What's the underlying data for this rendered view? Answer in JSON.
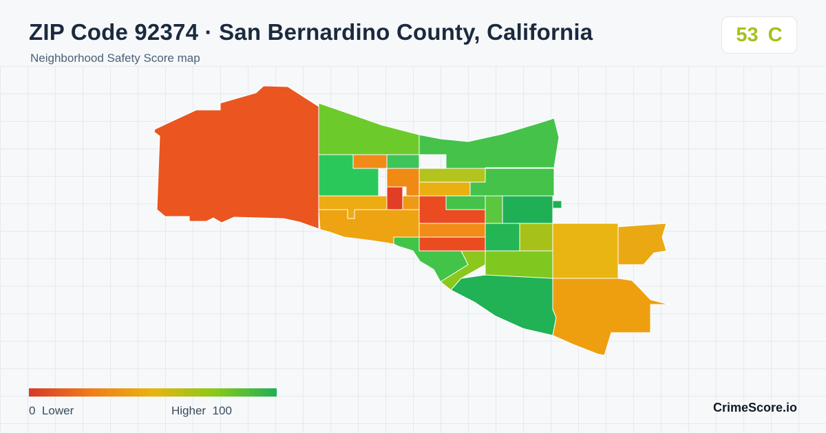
{
  "header": {
    "title": "ZIP Code 92374 · San Bernardino County, California",
    "subtitle": "Neighborhood Safety Score map"
  },
  "score_badge": {
    "score": "53",
    "grade": "C",
    "color": "#a4c21a"
  },
  "legend": {
    "min_label": "0",
    "low_label": "Lower",
    "high_label": "Higher",
    "max_label": "100",
    "colors": [
      "#d7392a",
      "#f07d1a",
      "#e8b40f",
      "#8ac919",
      "#1fb055"
    ]
  },
  "brand": {
    "name": "CrimeScore.io"
  },
  "map": {
    "type": "choropleth",
    "regions": [
      {
        "id": "west-large",
        "color": "#ea5520"
      },
      {
        "id": "north-green",
        "color": "#6dca2b"
      },
      {
        "id": "northeast-large",
        "color": "#44c24a"
      },
      {
        "id": "green-block-west",
        "color": "#2ac85a"
      },
      {
        "id": "orange-upper",
        "color": "#f28a18"
      },
      {
        "id": "green-strip",
        "color": "#3fc45a"
      },
      {
        "id": "orange-mid",
        "color": "#f08a15"
      },
      {
        "id": "olive-strip",
        "color": "#b2c41d"
      },
      {
        "id": "yellow-orange-strip",
        "color": "#eab012"
      },
      {
        "id": "red-small",
        "color": "#e23d25"
      },
      {
        "id": "orange-small",
        "color": "#ee9a16"
      },
      {
        "id": "amber-west",
        "color": "#ecac12"
      },
      {
        "id": "amber-west-lower",
        "color": "#eda312"
      },
      {
        "id": "red-center",
        "color": "#ea4b20"
      },
      {
        "id": "orange-center",
        "color": "#f18c18"
      },
      {
        "id": "green-center",
        "color": "#44c24a"
      },
      {
        "id": "green-east-small",
        "color": "#5ac73f"
      },
      {
        "id": "darkgreen-east",
        "color": "#1fb055"
      },
      {
        "id": "green-mid-east",
        "color": "#24b554"
      },
      {
        "id": "olive-mid-east",
        "color": "#a6c21a"
      },
      {
        "id": "red-band",
        "color": "#ea4c20"
      },
      {
        "id": "green-south-west",
        "color": "#42c448"
      },
      {
        "id": "lime-south",
        "color": "#7ec820"
      },
      {
        "id": "lime-sliver",
        "color": "#8cc71d"
      },
      {
        "id": "green-south",
        "color": "#20b254"
      },
      {
        "id": "yellow-east",
        "color": "#e8b512"
      },
      {
        "id": "amber-far-east",
        "color": "#eaa812"
      },
      {
        "id": "orange-southeast",
        "color": "#ee9f10"
      }
    ]
  }
}
